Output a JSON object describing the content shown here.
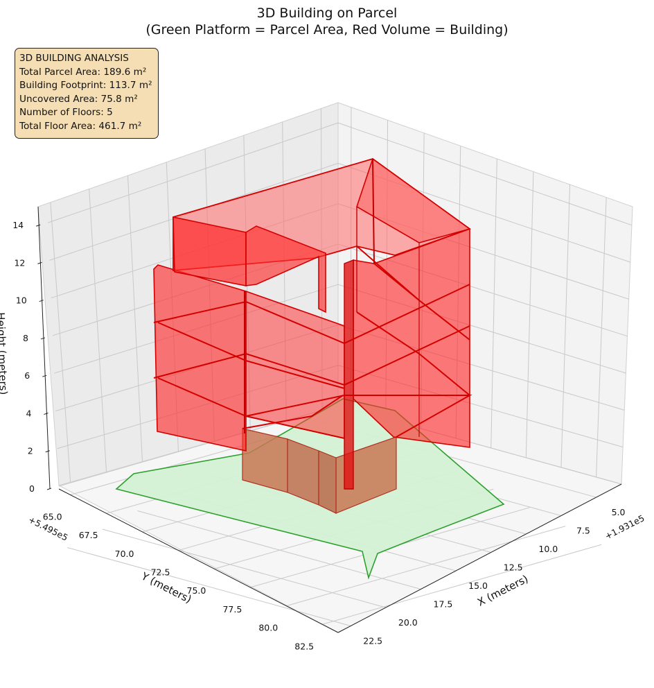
{
  "chart_data": {
    "type": "3d-polygons",
    "title_line1": "3D Building on Parcel",
    "title_line2": "(Green Platform = Parcel Area, Red Volume = Building)",
    "x_axis": {
      "label": "X (meters)",
      "offset": "+1.931e5",
      "ticks": [
        "5.0",
        "7.5",
        "10.0",
        "12.5",
        "15.0",
        "17.5",
        "20.0",
        "22.5"
      ]
    },
    "y_axis": {
      "label": "Y (meters)",
      "offset": "+5.495e5",
      "ticks": [
        "65.0",
        "67.5",
        "70.0",
        "72.5",
        "75.0",
        "77.5",
        "80.0",
        "82.5"
      ]
    },
    "z_axis": {
      "label": "Height (meters)",
      "ticks": [
        "0",
        "2",
        "4",
        "6",
        "8",
        "10",
        "12",
        "14"
      ]
    },
    "series": [
      {
        "name": "Parcel Area",
        "color": "#2ca02c",
        "fill": "#d4f1d4"
      },
      {
        "name": "Building",
        "color": "#ff0000",
        "edge": "#d40000"
      }
    ],
    "floors": 5,
    "grid": true
  },
  "info": {
    "heading": "3D BUILDING ANALYSIS",
    "lines": [
      "Total Parcel Area: 189.6 m²",
      "Building Footprint: 113.7 m²",
      "Uncovered Area: 75.8 m²",
      "Number of Floors: 5",
      "Total Floor Area: 461.7 m²"
    ]
  },
  "colors": {
    "pane": "#f2f2f2",
    "pane_dark": "#e8e8e8",
    "grid": "#c8c8c8",
    "info_bg": "#f5deb3"
  }
}
